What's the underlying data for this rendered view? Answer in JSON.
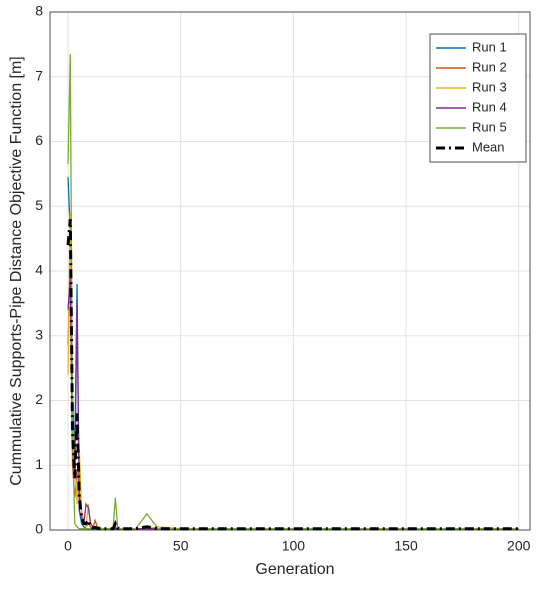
{
  "chart_data": {
    "type": "line",
    "x_label": "Generation",
    "y_label": "Cummulative Supports-Pipe Distance Objective Function [m]",
    "x": [
      0,
      1,
      2,
      3,
      4,
      5,
      6,
      7,
      8,
      9,
      10,
      11,
      12,
      13,
      14,
      15,
      16,
      17,
      18,
      19,
      20,
      21,
      22,
      23,
      24,
      30,
      35,
      40,
      50,
      100,
      150,
      200
    ],
    "series": [
      {
        "name": "Run 1",
        "color": "#0072bd",
        "dash": "solid",
        "values": [
          5.45,
          4.6,
          2.0,
          1.2,
          3.8,
          0.3,
          0.1,
          0.05,
          0.02,
          0.02,
          0.02,
          0.02,
          0.02,
          0.02,
          0.02,
          0.02,
          0.02,
          0.02,
          0.02,
          0.02,
          0.02,
          0.02,
          0.02,
          0.02,
          0.02,
          0.02,
          0.02,
          0.02,
          0.02,
          0.02,
          0.02,
          0.02
        ]
      },
      {
        "name": "Run 2",
        "color": "#d95319",
        "dash": "solid",
        "values": [
          2.85,
          4.2,
          1.0,
          0.5,
          0.9,
          0.6,
          0.3,
          0.1,
          0.05,
          0.1,
          0.05,
          0.02,
          0.15,
          0.05,
          0.02,
          0.02,
          0.02,
          0.02,
          0.02,
          0.02,
          0.02,
          0.05,
          0.02,
          0.02,
          0.02,
          0.02,
          0.02,
          0.02,
          0.02,
          0.02,
          0.02,
          0.02
        ]
      },
      {
        "name": "Run 3",
        "color": "#edb120",
        "dash": "solid",
        "values": [
          2.4,
          4.9,
          1.8,
          1.1,
          0.4,
          1.25,
          0.3,
          0.1,
          0.05,
          0.4,
          0.1,
          0.05,
          0.02,
          0.02,
          0.05,
          0.02,
          0.02,
          0.02,
          0.02,
          0.02,
          0.02,
          0.02,
          0.02,
          0.02,
          0.02,
          0.02,
          0.02,
          0.05,
          0.02,
          0.02,
          0.02,
          0.02
        ]
      },
      {
        "name": "Run 4",
        "color": "#7e2f8e",
        "dash": "solid",
        "values": [
          3.4,
          3.9,
          1.3,
          0.8,
          3.5,
          0.3,
          0.2,
          0.1,
          0.4,
          0.35,
          0.1,
          0.05,
          0.02,
          0.02,
          0.02,
          0.02,
          0.02,
          0.02,
          0.02,
          0.02,
          0.02,
          0.02,
          0.02,
          0.02,
          0.02,
          0.02,
          0.02,
          0.02,
          0.02,
          0.02,
          0.02,
          0.02
        ]
      },
      {
        "name": "Run 5",
        "color": "#77ac30",
        "dash": "solid",
        "values": [
          5.65,
          7.35,
          1.5,
          0.1,
          0.05,
          0.02,
          0.02,
          0.02,
          0.02,
          0.02,
          0.02,
          0.02,
          0.02,
          0.02,
          0.02,
          0.02,
          0.02,
          0.02,
          0.02,
          0.02,
          0.02,
          0.5,
          0.05,
          0.02,
          0.02,
          0.02,
          0.25,
          0.02,
          0.02,
          0.02,
          0.02,
          0.02
        ]
      },
      {
        "name": "Mean",
        "color": "#000000",
        "dash": "dashdot",
        "values": [
          4.4,
          4.8,
          1.5,
          0.8,
          1.8,
          0.5,
          0.2,
          0.1,
          0.1,
          0.15,
          0.05,
          0.03,
          0.04,
          0.03,
          0.02,
          0.02,
          0.02,
          0.02,
          0.02,
          0.02,
          0.02,
          0.1,
          0.03,
          0.02,
          0.02,
          0.02,
          0.05,
          0.02,
          0.02,
          0.02,
          0.02,
          0.02
        ]
      }
    ],
    "xlim": [
      -8,
      205
    ],
    "ylim": [
      0,
      8
    ],
    "xticks": [
      0,
      50,
      100,
      150,
      200
    ],
    "yticks": [
      0,
      1,
      2,
      3,
      4,
      5,
      6,
      7,
      8
    ],
    "grid": true,
    "legend": "top-right"
  }
}
